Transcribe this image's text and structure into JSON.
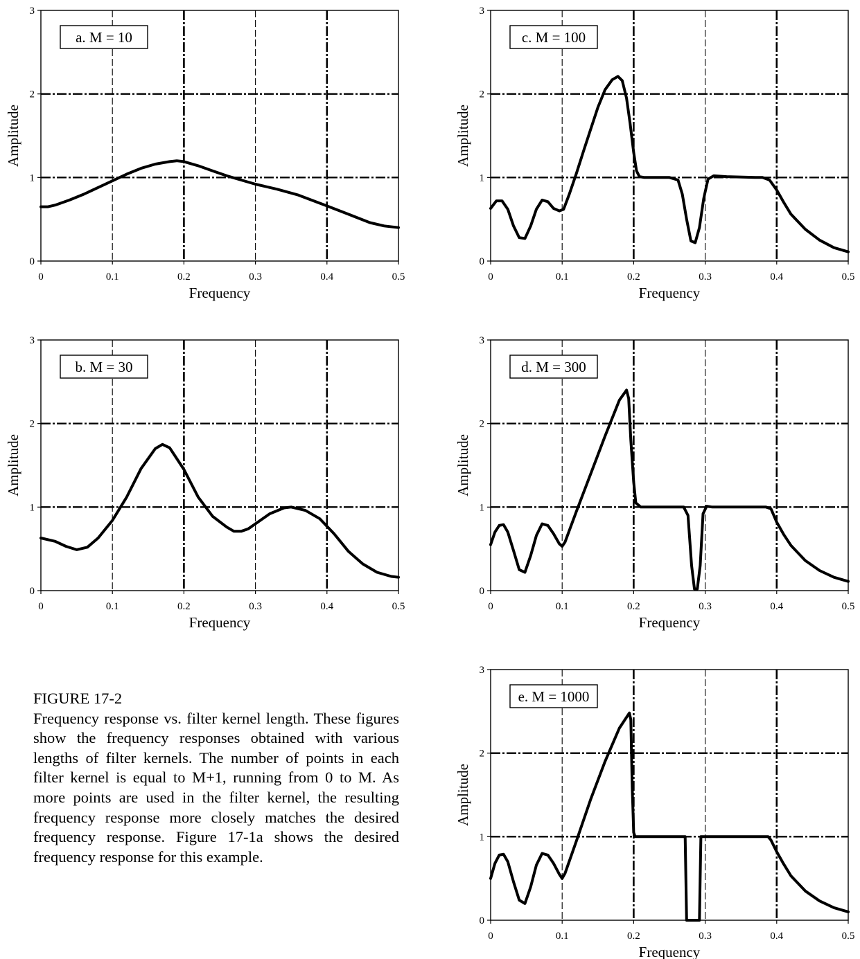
{
  "caption": {
    "title": "FIGURE 17-2",
    "text": "Frequency response vs. filter kernel length. These figures show the frequency responses obtained with various lengths of filter kernels. The number of points in each filter kernel is equal to M+1, running from 0 to M. As more points are used in the filter kernel, the resulting frequency response more closely matches the desired frequency response.  Figure 17-1a shows the desired frequency response for this example."
  },
  "chart_data": [
    {
      "type": "line",
      "label": "a.  M = 10",
      "xlabel": "Frequency",
      "ylabel": "Amplitude",
      "xlim": [
        0,
        0.5
      ],
      "ylim": [
        0,
        3
      ],
      "xticks": [
        "0",
        "0.1",
        "0.2",
        "0.3",
        "0.4",
        "0.5"
      ],
      "yticks": [
        "0",
        "1",
        "2",
        "3"
      ],
      "grid": true,
      "series": [
        {
          "x": [
            0,
            0.01,
            0.02,
            0.04,
            0.06,
            0.08,
            0.1,
            0.12,
            0.14,
            0.16,
            0.18,
            0.19,
            0.2,
            0.22,
            0.24,
            0.26,
            0.28,
            0.3,
            0.33,
            0.36,
            0.4,
            0.43,
            0.46,
            0.48,
            0.5
          ],
          "y": [
            0.65,
            0.65,
            0.67,
            0.73,
            0.8,
            0.88,
            0.96,
            1.04,
            1.11,
            1.16,
            1.19,
            1.2,
            1.19,
            1.14,
            1.08,
            1.02,
            0.97,
            0.92,
            0.86,
            0.79,
            0.66,
            0.56,
            0.46,
            0.42,
            0.4
          ]
        }
      ]
    },
    {
      "type": "line",
      "label": "b.  M = 30",
      "xlabel": "Frequency",
      "ylabel": "Amplitude",
      "xlim": [
        0,
        0.5
      ],
      "ylim": [
        0,
        3
      ],
      "xticks": [
        "0",
        "0.1",
        "0.2",
        "0.3",
        "0.4",
        "0.5"
      ],
      "yticks": [
        "0",
        "1",
        "2",
        "3"
      ],
      "grid": true,
      "series": [
        {
          "x": [
            0,
            0.02,
            0.035,
            0.05,
            0.065,
            0.08,
            0.1,
            0.12,
            0.14,
            0.16,
            0.17,
            0.18,
            0.2,
            0.22,
            0.24,
            0.26,
            0.27,
            0.28,
            0.29,
            0.3,
            0.32,
            0.34,
            0.35,
            0.37,
            0.39,
            0.41,
            0.43,
            0.45,
            0.47,
            0.49,
            0.5
          ],
          "y": [
            0.63,
            0.59,
            0.53,
            0.49,
            0.52,
            0.63,
            0.84,
            1.12,
            1.46,
            1.7,
            1.75,
            1.71,
            1.45,
            1.12,
            0.89,
            0.76,
            0.71,
            0.71,
            0.74,
            0.8,
            0.92,
            0.99,
            1.0,
            0.96,
            0.86,
            0.68,
            0.47,
            0.32,
            0.22,
            0.17,
            0.16
          ]
        }
      ]
    },
    {
      "type": "line",
      "label": "c.  M = 100",
      "xlabel": "Frequency",
      "ylabel": "Amplitude",
      "xlim": [
        0,
        0.5
      ],
      "ylim": [
        0,
        3
      ],
      "xticks": [
        "0",
        "0.1",
        "0.2",
        "0.3",
        "0.4",
        "0.5"
      ],
      "yticks": [
        "0",
        "1",
        "2",
        "3"
      ],
      "grid": true,
      "series": [
        {
          "x": [
            0,
            0.008,
            0.016,
            0.024,
            0.032,
            0.04,
            0.048,
            0.056,
            0.064,
            0.072,
            0.08,
            0.088,
            0.096,
            0.102,
            0.11,
            0.12,
            0.13,
            0.14,
            0.15,
            0.16,
            0.17,
            0.178,
            0.184,
            0.19,
            0.195,
            0.2,
            0.204,
            0.208,
            0.215,
            0.25,
            0.262,
            0.268,
            0.274,
            0.28,
            0.286,
            0.292,
            0.298,
            0.304,
            0.312,
            0.33,
            0.37,
            0.38,
            0.39,
            0.4,
            0.41,
            0.42,
            0.44,
            0.46,
            0.48,
            0.5
          ],
          "y": [
            0.63,
            0.72,
            0.72,
            0.62,
            0.42,
            0.28,
            0.27,
            0.42,
            0.62,
            0.73,
            0.71,
            0.63,
            0.6,
            0.62,
            0.8,
            1.05,
            1.32,
            1.58,
            1.84,
            2.05,
            2.17,
            2.21,
            2.16,
            1.95,
            1.65,
            1.3,
            1.08,
            1.01,
            1.0,
            1.0,
            0.97,
            0.8,
            0.5,
            0.24,
            0.22,
            0.4,
            0.75,
            0.98,
            1.02,
            1.01,
            1.0,
            1.0,
            0.97,
            0.85,
            0.7,
            0.56,
            0.38,
            0.25,
            0.16,
            0.11
          ]
        }
      ]
    },
    {
      "type": "line",
      "label": "d.  M = 300",
      "xlabel": "Frequency",
      "ylabel": "Amplitude",
      "xlim": [
        0,
        0.5
      ],
      "ylim": [
        0,
        3
      ],
      "xticks": [
        "0",
        "0.1",
        "0.2",
        "0.3",
        "0.4",
        "0.5"
      ],
      "yticks": [
        "0",
        "1",
        "2",
        "3"
      ],
      "grid": true,
      "series": [
        {
          "x": [
            0,
            0.006,
            0.012,
            0.018,
            0.024,
            0.032,
            0.04,
            0.048,
            0.056,
            0.064,
            0.072,
            0.08,
            0.088,
            0.096,
            0.1,
            0.104,
            0.12,
            0.14,
            0.16,
            0.18,
            0.19,
            0.193,
            0.196,
            0.2,
            0.203,
            0.21,
            0.27,
            0.276,
            0.281,
            0.285,
            0.289,
            0.293,
            0.297,
            0.302,
            0.31,
            0.385,
            0.392,
            0.4,
            0.41,
            0.42,
            0.44,
            0.46,
            0.48,
            0.5
          ],
          "y": [
            0.55,
            0.7,
            0.78,
            0.79,
            0.7,
            0.48,
            0.25,
            0.22,
            0.42,
            0.66,
            0.8,
            0.78,
            0.68,
            0.56,
            0.53,
            0.58,
            0.95,
            1.4,
            1.85,
            2.28,
            2.4,
            2.3,
            1.8,
            1.3,
            1.05,
            1.0,
            1.0,
            0.9,
            0.3,
            0.02,
            0.02,
            0.3,
            0.92,
            1.01,
            1.0,
            1.0,
            0.98,
            0.82,
            0.67,
            0.54,
            0.36,
            0.24,
            0.16,
            0.11
          ]
        }
      ]
    },
    {
      "type": "line",
      "label": "e.  M = 1000",
      "xlabel": "Frequency",
      "ylabel": "Amplitude",
      "xlim": [
        0,
        0.5
      ],
      "ylim": [
        0,
        3
      ],
      "xticks": [
        "0",
        "0.1",
        "0.2",
        "0.3",
        "0.4",
        "0.5"
      ],
      "yticks": [
        "0",
        "1",
        "2",
        "3"
      ],
      "grid": true,
      "series": [
        {
          "x": [
            0,
            0.006,
            0.012,
            0.018,
            0.024,
            0.032,
            0.04,
            0.048,
            0.056,
            0.064,
            0.072,
            0.08,
            0.088,
            0.096,
            0.1,
            0.104,
            0.12,
            0.14,
            0.16,
            0.18,
            0.194,
            0.196,
            0.198,
            0.2,
            0.202,
            0.205,
            0.272,
            0.274,
            0.276,
            0.29,
            0.292,
            0.294,
            0.3,
            0.388,
            0.392,
            0.4,
            0.41,
            0.42,
            0.44,
            0.46,
            0.48,
            0.5
          ],
          "y": [
            0.5,
            0.68,
            0.78,
            0.79,
            0.7,
            0.46,
            0.24,
            0.2,
            0.4,
            0.66,
            0.8,
            0.78,
            0.68,
            0.55,
            0.5,
            0.56,
            0.95,
            1.45,
            1.9,
            2.3,
            2.48,
            2.4,
            1.6,
            1.05,
            1.0,
            1.0,
            1.0,
            0.0,
            0.0,
            0.0,
            0.0,
            1.0,
            1.0,
            1.0,
            0.96,
            0.82,
            0.67,
            0.53,
            0.35,
            0.23,
            0.15,
            0.1
          ]
        }
      ]
    }
  ]
}
